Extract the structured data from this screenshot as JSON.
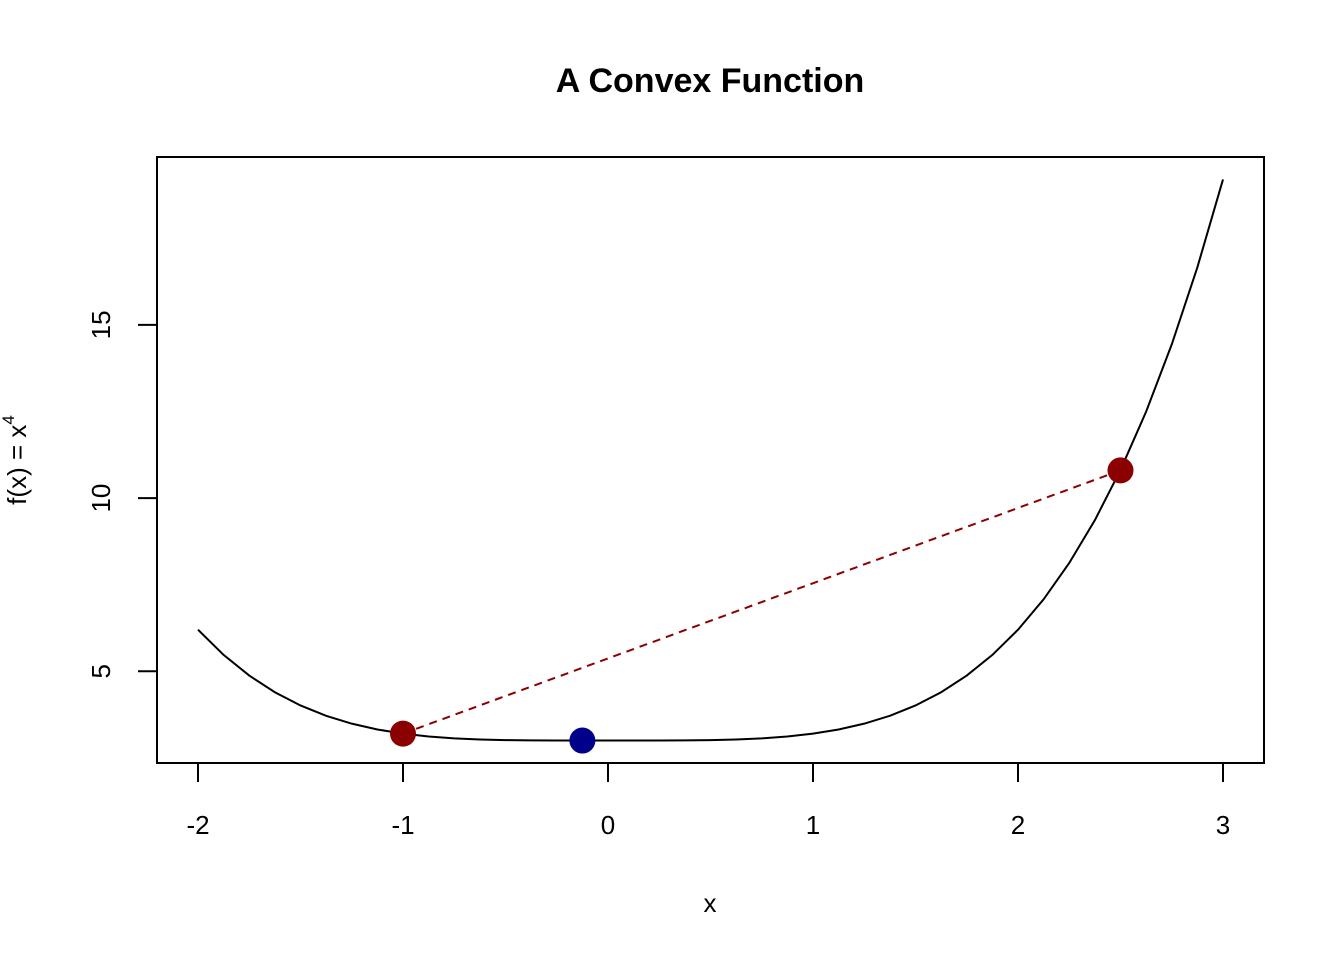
{
  "chart_data": {
    "type": "line",
    "title": "A Convex Function",
    "x_label": "x",
    "y_label": {
      "text": "f(x) = x",
      "superscript": "4"
    },
    "xlim": [
      -2.2,
      3.2
    ],
    "ylim": [
      2.352,
      19.848
    ],
    "xticks": [
      -2,
      -1,
      0,
      1,
      2,
      3
    ],
    "yticks": [
      5,
      10,
      15
    ],
    "x": [
      -2,
      -1.875,
      -1.75,
      -1.625,
      -1.5,
      -1.375,
      -1.25,
      -1.125,
      -1,
      -0.875,
      -0.75,
      -0.625,
      -0.5,
      -0.375,
      -0.25,
      -0.125,
      0,
      0.125,
      0.25,
      0.375,
      0.5,
      0.625,
      0.75,
      0.875,
      1,
      1.125,
      1.25,
      1.375,
      1.5,
      1.625,
      1.75,
      1.875,
      2,
      2.125,
      2.25,
      2.375,
      2.5,
      2.625,
      2.75,
      2.875,
      3
    ],
    "series": [
      {
        "color": "#000000",
        "values": [
          6.2,
          5.472,
          4.876,
          4.395,
          4.013,
          3.715,
          3.488,
          3.32,
          3.2,
          3.117,
          3.063,
          3.031,
          3.013,
          3.004,
          3.001,
          3.0,
          3,
          3.0,
          3.001,
          3.004,
          3.013,
          3.031,
          3.063,
          3.117,
          3.2,
          3.32,
          3.488,
          3.715,
          4.013,
          4.395,
          4.876,
          5.472,
          6.2,
          7.078,
          8.126,
          9.363,
          10.813,
          12.496,
          14.438,
          16.664,
          19.2
        ]
      }
    ],
    "chord": {
      "x": [
        -1,
        2.5
      ],
      "values": [
        3.2,
        10.8
      ],
      "color": "#8b0000",
      "dashed": true
    },
    "points": [
      {
        "x": -1,
        "y": 3.2,
        "color": "#8b0000"
      },
      {
        "x": 2.5,
        "y": 10.8,
        "color": "#8b0000"
      },
      {
        "x": -0.125,
        "y": 3.0,
        "color": "#00008b"
      }
    ]
  }
}
